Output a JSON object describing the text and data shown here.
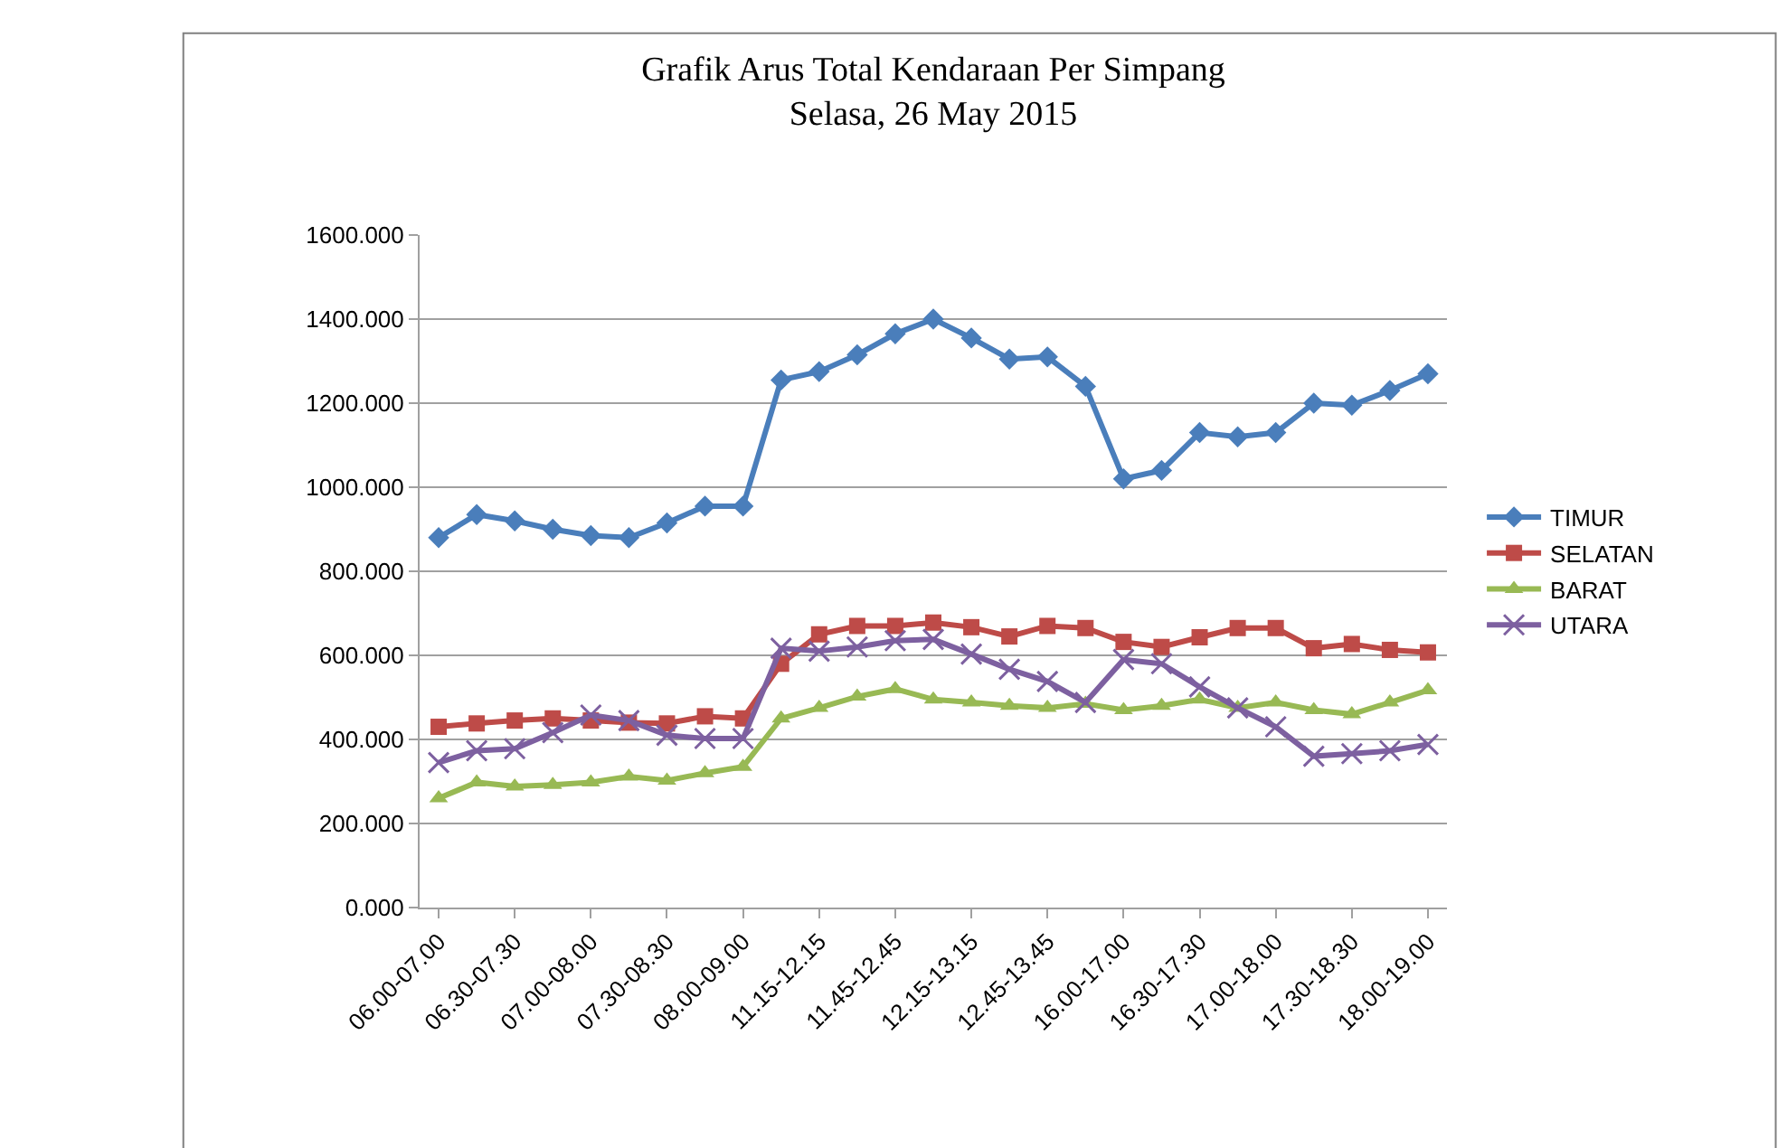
{
  "chart_data": {
    "type": "line",
    "title": "Grafik Arus Total Kendaraan Per Simpang",
    "subtitle": "Selasa, 26 May 2015",
    "categories": [
      "06.00-07.00",
      null,
      "06.30-07.30",
      null,
      "07.00-08.00",
      null,
      "07.30-08.30",
      null,
      "08.00-09.00",
      null,
      "11.15-12.15",
      null,
      "11.45-12.45",
      null,
      "12.15-13.15",
      null,
      "12.45-13.45",
      null,
      "16.00-17.00",
      null,
      "16.30-17.30",
      null,
      "17.00-18.00",
      null,
      "17.30-18.30",
      null,
      "18.00-19.00"
    ],
    "series": [
      {
        "name": "TIMUR",
        "color": "#4a7ebb",
        "marker": "diamond",
        "values": [
          880,
          935,
          920,
          900,
          885,
          880,
          915,
          955,
          955,
          1255,
          1275,
          1315,
          1365,
          1400,
          1355,
          1305,
          1310,
          1240,
          1020,
          1040,
          1130,
          1120,
          1130,
          1200,
          1195,
          1230,
          1270
        ]
      },
      {
        "name": "SELATAN",
        "color": "#be4b48",
        "marker": "square",
        "values": [
          430,
          438,
          445,
          450,
          445,
          440,
          438,
          455,
          450,
          580,
          650,
          670,
          670,
          678,
          667,
          645,
          670,
          665,
          632,
          620,
          643,
          665,
          665,
          617,
          627,
          613,
          607
        ]
      },
      {
        "name": "BARAT",
        "color": "#98b954",
        "marker": "triangle",
        "values": [
          260,
          298,
          288,
          292,
          298,
          312,
          302,
          320,
          335,
          450,
          475,
          502,
          520,
          495,
          488,
          480,
          475,
          485,
          470,
          480,
          495,
          475,
          488,
          470,
          460,
          488,
          517
        ]
      },
      {
        "name": "UTARA",
        "color": "#7d60a0",
        "marker": "cross",
        "values": [
          345,
          373,
          378,
          416,
          458,
          445,
          410,
          402,
          402,
          617,
          610,
          620,
          635,
          638,
          603,
          567,
          538,
          488,
          590,
          580,
          525,
          475,
          430,
          360,
          366,
          373,
          388
        ]
      }
    ],
    "ylim": [
      0,
      1600
    ],
    "yticks": [
      {
        "value": 0,
        "label": "0.000"
      },
      {
        "value": 200,
        "label": "200.000"
      },
      {
        "value": 400,
        "label": "400.000"
      },
      {
        "value": 600,
        "label": "600.000"
      },
      {
        "value": 800,
        "label": "800.000"
      },
      {
        "value": 1000,
        "label": "1000.000"
      },
      {
        "value": 1200,
        "label": "1200.000"
      },
      {
        "value": 1400,
        "label": "1400.000"
      },
      {
        "value": 1600,
        "label": "1600.000"
      }
    ],
    "grid": "y",
    "legend": "right",
    "line_style": "solid"
  }
}
